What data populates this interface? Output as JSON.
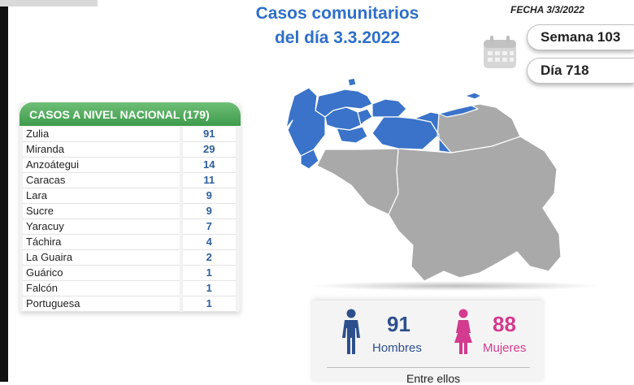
{
  "header": {
    "title_line1": "Casos comunitarios",
    "title_line2": "del día 3.3.2022",
    "fecha": "FECHA 3/3/2022"
  },
  "badges": {
    "semana": "Semana 103",
    "dia": "Día 718"
  },
  "table": {
    "header": "CASOS A NIVEL NACIONAL  (179)",
    "rows": [
      {
        "name": "Zulia",
        "value": "91"
      },
      {
        "name": "Miranda",
        "value": "29"
      },
      {
        "name": "Anzoátegui",
        "value": "14"
      },
      {
        "name": "Caracas",
        "value": "11"
      },
      {
        "name": "Lara",
        "value": "9"
      },
      {
        "name": "Sucre",
        "value": "9"
      },
      {
        "name": "Yaracuy",
        "value": "7"
      },
      {
        "name": "Táchira",
        "value": "4"
      },
      {
        "name": "La Guaira",
        "value": "2"
      },
      {
        "name": "Guárico",
        "value": "1"
      },
      {
        "name": "Falcón",
        "value": "1"
      },
      {
        "name": "Portuguesa",
        "value": "1"
      }
    ]
  },
  "stats": {
    "men_count": "91",
    "men_label": "Hombres",
    "women_count": "88",
    "women_label": "Mujeres",
    "note": "Entre ellos"
  },
  "colors": {
    "title": "#2e6fc9",
    "map_highlight": "#3a73c9",
    "map_base": "#a9a9a9",
    "men": "#2d4f8c",
    "women": "#d23b8e",
    "header_green": "#3e9b4c"
  },
  "icons": {
    "calendar": "calendar-icon",
    "men": "man-icon",
    "women": "woman-icon"
  }
}
